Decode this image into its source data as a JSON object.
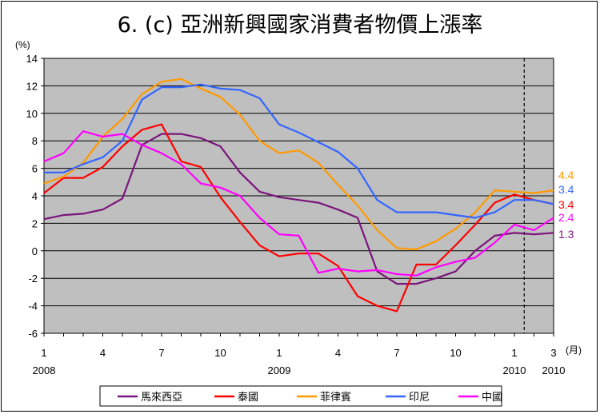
{
  "chart_data": {
    "type": "line",
    "title": "6. (c)  亞洲新興國家消費者物價上漲率",
    "y_unit": "(%)",
    "x_unit": "(月)",
    "ylim": [
      -6,
      14
    ],
    "y_ticks": [
      -6,
      -4,
      -2,
      0,
      2,
      4,
      6,
      8,
      10,
      12,
      14
    ],
    "grid": true,
    "background_color": "#bfbfbf",
    "legend_position": "bottom",
    "x_tick_labels": [
      {
        "index": 0,
        "month": "1",
        "year": "2008"
      },
      {
        "index": 3,
        "month": "4",
        "year": ""
      },
      {
        "index": 6,
        "month": "7",
        "year": ""
      },
      {
        "index": 9,
        "month": "10",
        "year": ""
      },
      {
        "index": 12,
        "month": "1",
        "year": "2009"
      },
      {
        "index": 15,
        "month": "4",
        "year": ""
      },
      {
        "index": 18,
        "month": "7",
        "year": ""
      },
      {
        "index": 21,
        "month": "10",
        "year": ""
      },
      {
        "index": 24,
        "month": "1",
        "year": "2010"
      },
      {
        "index": 26,
        "month": "3",
        "year": "2010"
      }
    ],
    "divider_after_index": 25,
    "series": [
      {
        "name": "馬來西亞",
        "color": "#7b147b",
        "values": [
          2.3,
          2.6,
          2.7,
          3.0,
          3.8,
          7.7,
          8.5,
          8.5,
          8.2,
          7.6,
          5.7,
          4.3,
          3.9,
          3.7,
          3.5,
          3.0,
          2.4,
          -1.5,
          -2.4,
          -2.4,
          -2.0,
          -1.5,
          0.0,
          1.1,
          1.3,
          1.2,
          1.3
        ],
        "end_label": "1.3"
      },
      {
        "name": "泰國",
        "color": "#ff0000",
        "values": [
          4.2,
          5.3,
          5.3,
          6.1,
          7.6,
          8.8,
          9.2,
          6.5,
          6.1,
          3.9,
          2.1,
          0.4,
          -0.4,
          -0.2,
          -0.2,
          -1.1,
          -3.3,
          -4.0,
          -4.4,
          -1.0,
          -1.0,
          0.4,
          1.9,
          3.5,
          4.1,
          3.7,
          3.4
        ],
        "end_label": "3.4"
      },
      {
        "name": "菲律賓",
        "color": "#ff9900",
        "values": [
          4.9,
          5.4,
          6.4,
          8.3,
          9.6,
          11.4,
          12.3,
          12.5,
          11.8,
          11.2,
          9.9,
          8.0,
          7.1,
          7.3,
          6.4,
          4.8,
          3.3,
          1.5,
          0.2,
          0.1,
          0.7,
          1.6,
          2.8,
          4.4,
          4.3,
          4.2,
          4.4
        ],
        "end_label": "4.4"
      },
      {
        "name": "印尼",
        "color": "#3366ff",
        "values": [
          5.7,
          5.7,
          6.3,
          6.8,
          8.0,
          11.0,
          11.9,
          11.9,
          12.1,
          11.8,
          11.7,
          11.1,
          9.2,
          8.6,
          7.9,
          7.2,
          6.0,
          3.7,
          2.8,
          2.8,
          2.8,
          2.6,
          2.4,
          2.8,
          3.7,
          3.7,
          3.4
        ],
        "end_label": "3.4"
      },
      {
        "name": "中國",
        "color": "#ff00ff",
        "values": [
          6.5,
          7.1,
          8.7,
          8.3,
          8.5,
          7.7,
          7.1,
          6.3,
          4.9,
          4.6,
          4.0,
          2.4,
          1.2,
          1.1,
          -1.6,
          -1.3,
          -1.5,
          -1.4,
          -1.7,
          -1.8,
          -1.2,
          -0.8,
          -0.5,
          0.6,
          1.9,
          1.5,
          2.4
        ],
        "end_label": "2.4"
      }
    ]
  }
}
